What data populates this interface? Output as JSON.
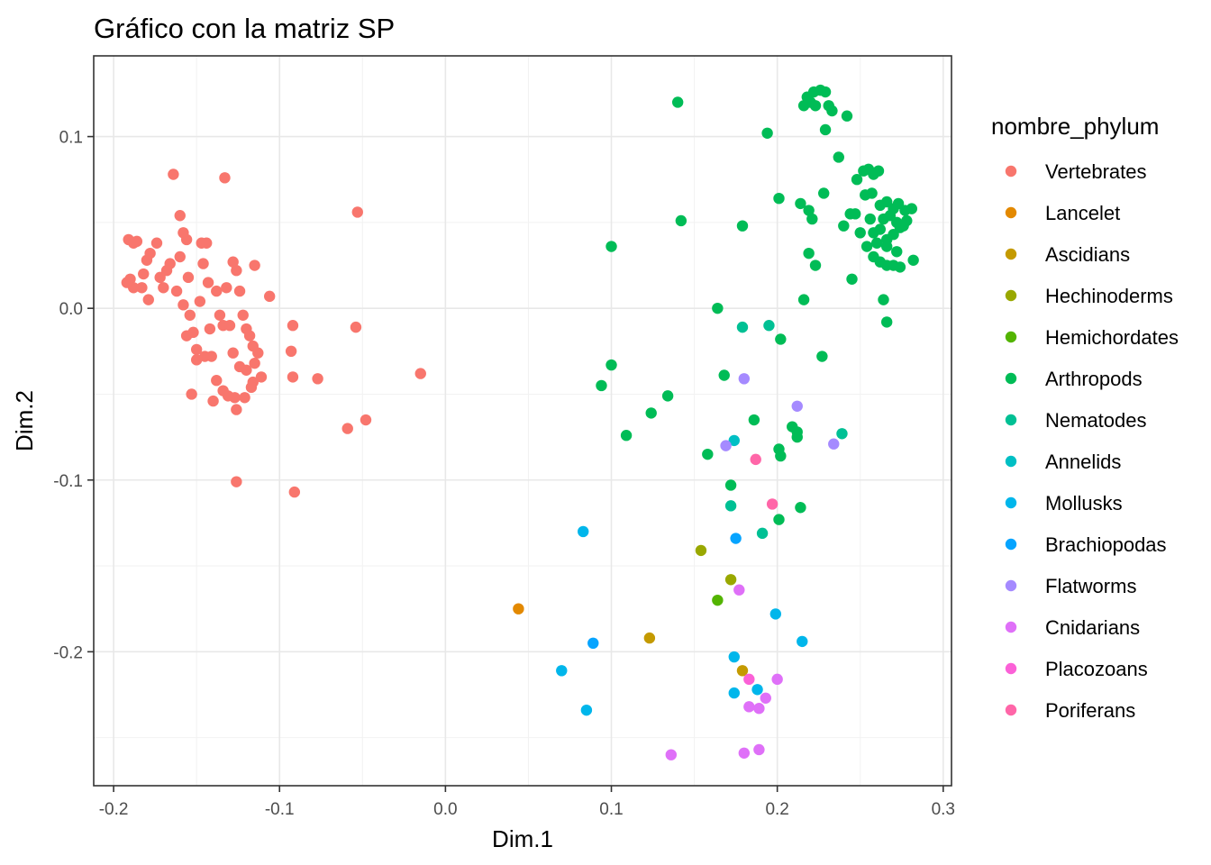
{
  "chart_data": {
    "type": "scatter",
    "title": "Gráfico con la matriz SP",
    "xlabel": "Dim.1",
    "ylabel": "Dim.2",
    "xlim": [
      -0.212,
      0.305
    ],
    "ylim": [
      -0.278,
      0.147
    ],
    "x_ticks": [
      -0.2,
      -0.1,
      0.0,
      0.1,
      0.2,
      0.3
    ],
    "x_tick_labels": [
      "-0.2",
      "-0.1",
      "0.0",
      "0.1",
      "0.2",
      "0.3"
    ],
    "y_ticks": [
      -0.2,
      -0.1,
      0.0,
      0.1
    ],
    "y_tick_labels": [
      "-0.2",
      "-0.1",
      "0.0",
      "0.1"
    ],
    "grid": true,
    "legend": {
      "title": "nombre_phylum",
      "position": "right"
    },
    "series": [
      {
        "name": "Vertebrates",
        "color": "#F8766D",
        "points": [
          [
            -0.191,
            0.04
          ],
          [
            -0.188,
            0.038
          ],
          [
            -0.186,
            0.039
          ],
          [
            -0.19,
            0.017
          ],
          [
            -0.188,
            0.012
          ],
          [
            -0.192,
            0.015
          ],
          [
            -0.18,
            0.028
          ],
          [
            -0.178,
            0.032
          ],
          [
            -0.182,
            0.02
          ],
          [
            -0.179,
            0.005
          ],
          [
            -0.183,
            0.012
          ],
          [
            -0.174,
            0.038
          ],
          [
            -0.172,
            0.018
          ],
          [
            -0.168,
            0.022
          ],
          [
            -0.17,
            0.012
          ],
          [
            -0.166,
            0.026
          ],
          [
            -0.164,
            0.078
          ],
          [
            -0.16,
            0.054
          ],
          [
            -0.162,
            0.01
          ],
          [
            -0.158,
            0.044
          ],
          [
            -0.16,
            0.03
          ],
          [
            -0.156,
            0.04
          ],
          [
            -0.155,
            0.018
          ],
          [
            -0.158,
            0.002
          ],
          [
            -0.154,
            -0.004
          ],
          [
            -0.152,
            -0.014
          ],
          [
            -0.156,
            -0.016
          ],
          [
            -0.15,
            -0.024
          ],
          [
            -0.148,
            0.004
          ],
          [
            -0.147,
            0.038
          ],
          [
            -0.144,
            0.038
          ],
          [
            -0.146,
            0.026
          ],
          [
            -0.143,
            0.015
          ],
          [
            -0.145,
            -0.028
          ],
          [
            -0.141,
            -0.028
          ],
          [
            -0.138,
            0.01
          ],
          [
            -0.136,
            -0.004
          ],
          [
            -0.133,
            0.076
          ],
          [
            -0.134,
            -0.01
          ],
          [
            -0.13,
            -0.01
          ],
          [
            -0.132,
            0.012
          ],
          [
            -0.128,
            0.027
          ],
          [
            -0.126,
            0.022
          ],
          [
            -0.124,
            0.01
          ],
          [
            -0.122,
            -0.004
          ],
          [
            -0.12,
            -0.012
          ],
          [
            -0.118,
            -0.016
          ],
          [
            -0.116,
            -0.022
          ],
          [
            -0.113,
            -0.026
          ],
          [
            -0.115,
            -0.032
          ],
          [
            -0.128,
            -0.026
          ],
          [
            -0.124,
            -0.034
          ],
          [
            -0.12,
            -0.036
          ],
          [
            -0.116,
            -0.043
          ],
          [
            -0.111,
            -0.04
          ],
          [
            -0.117,
            -0.046
          ],
          [
            -0.121,
            -0.052
          ],
          [
            -0.127,
            -0.052
          ],
          [
            -0.131,
            -0.051
          ],
          [
            -0.134,
            -0.048
          ],
          [
            -0.14,
            -0.054
          ],
          [
            -0.15,
            -0.03
          ],
          [
            -0.153,
            -0.05
          ],
          [
            -0.138,
            -0.042
          ],
          [
            -0.142,
            -0.012
          ],
          [
            -0.126,
            -0.059
          ],
          [
            -0.126,
            -0.101
          ],
          [
            -0.115,
            0.025
          ],
          [
            -0.106,
            0.007
          ],
          [
            -0.092,
            -0.01
          ],
          [
            -0.093,
            -0.025
          ],
          [
            -0.092,
            -0.04
          ],
          [
            -0.091,
            -0.107
          ],
          [
            -0.077,
            -0.041
          ],
          [
            -0.059,
            -0.07
          ],
          [
            -0.054,
            -0.011
          ],
          [
            -0.053,
            0.056
          ],
          [
            -0.048,
            -0.065
          ],
          [
            -0.015,
            -0.038
          ]
        ]
      },
      {
        "name": "Lancelet",
        "color": "#E38900",
        "points": [
          [
            0.044,
            -0.175
          ]
        ]
      },
      {
        "name": "Ascidians",
        "color": "#C49A00",
        "points": [
          [
            0.123,
            -0.192
          ],
          [
            0.179,
            -0.211
          ]
        ]
      },
      {
        "name": "Hechinoderms",
        "color": "#99A800",
        "points": [
          [
            0.154,
            -0.141
          ],
          [
            0.172,
            -0.158
          ]
        ]
      },
      {
        "name": "Hemichordates",
        "color": "#53B400",
        "points": [
          [
            0.164,
            -0.17
          ]
        ]
      },
      {
        "name": "Arthropods",
        "color": "#00BC56",
        "points": [
          [
            0.14,
            0.12
          ],
          [
            0.142,
            0.051
          ],
          [
            0.1,
            0.036
          ],
          [
            0.1,
            -0.033
          ],
          [
            0.094,
            -0.045
          ],
          [
            0.109,
            -0.074
          ],
          [
            0.124,
            -0.061
          ],
          [
            0.134,
            -0.051
          ],
          [
            0.158,
            -0.085
          ],
          [
            0.164,
            0.0
          ],
          [
            0.168,
            -0.039
          ],
          [
            0.172,
            -0.103
          ],
          [
            0.179,
            0.048
          ],
          [
            0.186,
            -0.065
          ],
          [
            0.194,
            0.102
          ],
          [
            0.201,
            0.064
          ],
          [
            0.202,
            -0.018
          ],
          [
            0.201,
            -0.082
          ],
          [
            0.202,
            -0.086
          ],
          [
            0.201,
            -0.123
          ],
          [
            0.209,
            -0.069
          ],
          [
            0.212,
            -0.075
          ],
          [
            0.212,
            -0.072
          ],
          [
            0.214,
            -0.116
          ],
          [
            0.214,
            0.061
          ],
          [
            0.216,
            0.118
          ],
          [
            0.218,
            0.123
          ],
          [
            0.22,
            0.12
          ],
          [
            0.222,
            0.126
          ],
          [
            0.223,
            0.118
          ],
          [
            0.226,
            0.127
          ],
          [
            0.229,
            0.126
          ],
          [
            0.231,
            0.118
          ],
          [
            0.233,
            0.115
          ],
          [
            0.229,
            0.104
          ],
          [
            0.237,
            0.088
          ],
          [
            0.242,
            0.112
          ],
          [
            0.228,
            0.067
          ],
          [
            0.219,
            0.057
          ],
          [
            0.221,
            0.052
          ],
          [
            0.219,
            0.032
          ],
          [
            0.223,
            0.025
          ],
          [
            0.216,
            0.005
          ],
          [
            0.227,
            -0.028
          ],
          [
            0.24,
            0.048
          ],
          [
            0.244,
            0.055
          ],
          [
            0.247,
            0.055
          ],
          [
            0.245,
            0.017
          ],
          [
            0.248,
            0.075
          ],
          [
            0.252,
            0.08
          ],
          [
            0.255,
            0.081
          ],
          [
            0.258,
            0.078
          ],
          [
            0.261,
            0.08
          ],
          [
            0.253,
            0.066
          ],
          [
            0.257,
            0.067
          ],
          [
            0.262,
            0.06
          ],
          [
            0.266,
            0.062
          ],
          [
            0.27,
            0.058
          ],
          [
            0.273,
            0.061
          ],
          [
            0.277,
            0.057
          ],
          [
            0.281,
            0.058
          ],
          [
            0.264,
            0.052
          ],
          [
            0.268,
            0.054
          ],
          [
            0.272,
            0.05
          ],
          [
            0.276,
            0.048
          ],
          [
            0.282,
            0.028
          ],
          [
            0.258,
            0.044
          ],
          [
            0.262,
            0.046
          ],
          [
            0.266,
            0.04
          ],
          [
            0.27,
            0.043
          ],
          [
            0.274,
            0.047
          ],
          [
            0.278,
            0.051
          ],
          [
            0.254,
            0.036
          ],
          [
            0.258,
            0.03
          ],
          [
            0.262,
            0.027
          ],
          [
            0.266,
            0.025
          ],
          [
            0.27,
            0.025
          ],
          [
            0.274,
            0.024
          ],
          [
            0.25,
            0.044
          ],
          [
            0.256,
            0.052
          ],
          [
            0.266,
            0.036
          ],
          [
            0.272,
            0.033
          ],
          [
            0.26,
            0.038
          ],
          [
            0.264,
            0.005
          ],
          [
            0.266,
            -0.008
          ]
        ]
      },
      {
        "name": "Nematodes",
        "color": "#00C094",
        "points": [
          [
            0.179,
            -0.011
          ],
          [
            0.195,
            -0.01
          ],
          [
            0.172,
            -0.115
          ],
          [
            0.191,
            -0.131
          ],
          [
            0.239,
            -0.073
          ]
        ]
      },
      {
        "name": "Annelids",
        "color": "#00BFC4",
        "points": [
          [
            0.174,
            -0.077
          ]
        ]
      },
      {
        "name": "Mollusks",
        "color": "#00B6EB",
        "points": [
          [
            0.083,
            -0.13
          ],
          [
            0.07,
            -0.211
          ],
          [
            0.085,
            -0.234
          ],
          [
            0.199,
            -0.178
          ],
          [
            0.215,
            -0.194
          ],
          [
            0.174,
            -0.203
          ],
          [
            0.174,
            -0.224
          ],
          [
            0.188,
            -0.222
          ]
        ]
      },
      {
        "name": "Brachiopodas",
        "color": "#06A4FF",
        "points": [
          [
            0.089,
            -0.195
          ],
          [
            0.175,
            -0.134
          ]
        ]
      },
      {
        "name": "Flatworms",
        "color": "#A58AFF",
        "points": [
          [
            0.18,
            -0.041
          ],
          [
            0.212,
            -0.057
          ],
          [
            0.234,
            -0.079
          ],
          [
            0.169,
            -0.08
          ]
        ]
      },
      {
        "name": "Cnidarians",
        "color": "#DF70F8",
        "points": [
          [
            0.136,
            -0.26
          ],
          [
            0.18,
            -0.259
          ],
          [
            0.189,
            -0.257
          ],
          [
            0.183,
            -0.232
          ],
          [
            0.189,
            -0.233
          ],
          [
            0.193,
            -0.227
          ],
          [
            0.177,
            -0.164
          ],
          [
            0.2,
            -0.216
          ]
        ]
      },
      {
        "name": "Placozoans",
        "color": "#FB61D7",
        "points": [
          [
            0.183,
            -0.216
          ]
        ]
      },
      {
        "name": "Poriferans",
        "color": "#FF66A8",
        "points": [
          [
            0.187,
            -0.088
          ],
          [
            0.197,
            -0.114
          ]
        ]
      }
    ]
  }
}
